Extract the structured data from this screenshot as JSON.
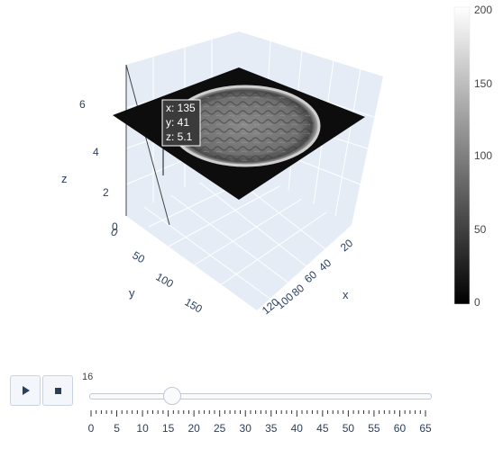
{
  "scene": {
    "axes": {
      "x": {
        "title": "x",
        "ticks": [
          "20",
          "40",
          "60",
          "80",
          "100",
          "120"
        ]
      },
      "y": {
        "title": "y",
        "ticks": [
          "0",
          "50",
          "100",
          "150"
        ]
      },
      "z": {
        "title": "z",
        "ticks": [
          "0",
          "2",
          "4",
          "6"
        ]
      }
    },
    "hover": {
      "x": "x: 135",
      "y": "y: 41",
      "z": "z: 5.1"
    }
  },
  "colorbar": {
    "ticks": [
      "200",
      "150",
      "100",
      "50",
      "0"
    ],
    "colors": {
      "high": "#ffffff",
      "low": "#000000"
    }
  },
  "slider": {
    "current_value": "16",
    "value_fraction": 0.242,
    "tick_labels": [
      "0",
      "5",
      "10",
      "15",
      "20",
      "25",
      "30",
      "35",
      "40",
      "45",
      "50",
      "55",
      "60",
      "65"
    ]
  },
  "controls": {
    "play_icon": "play-icon",
    "stop_icon": "stop-icon"
  }
}
